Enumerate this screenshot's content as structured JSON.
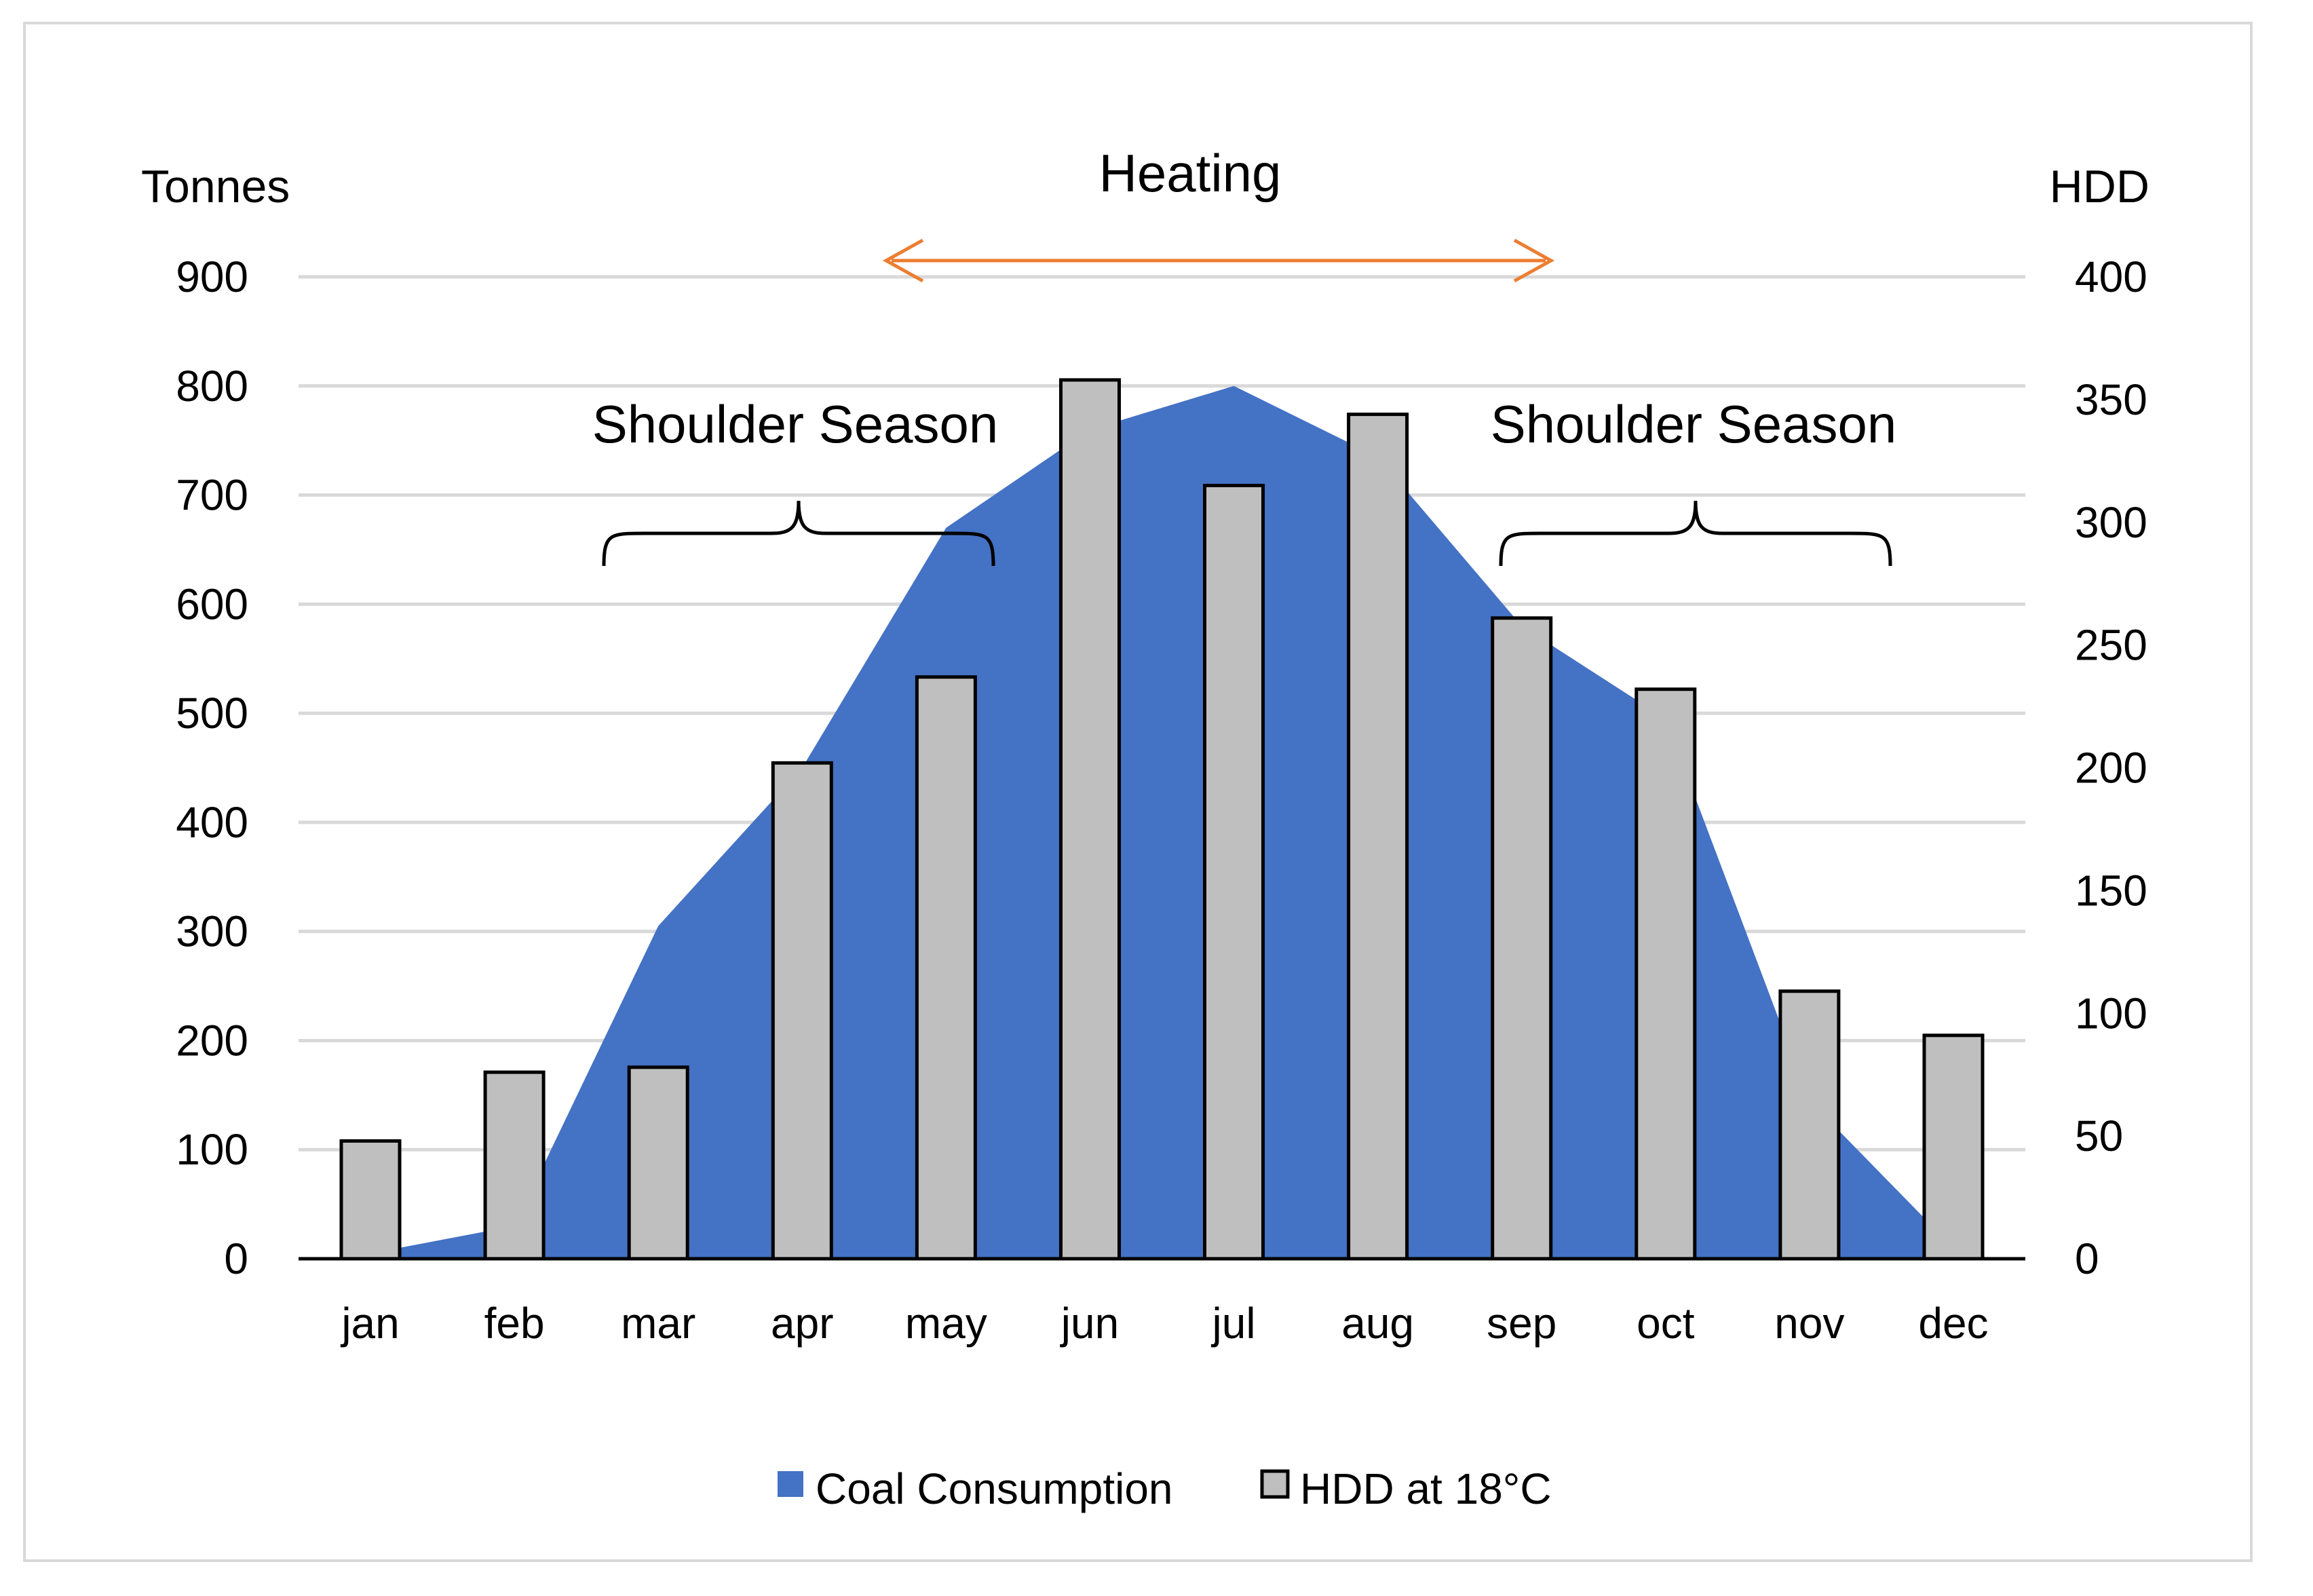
{
  "chart_data": {
    "type": "bar",
    "categories": [
      "jan",
      "feb",
      "mar",
      "apr",
      "may",
      "jun",
      "jul",
      "aug",
      "sep",
      "oct",
      "nov",
      "dec"
    ],
    "series": [
      {
        "name": "Coal Consumption",
        "type": "area",
        "axis": "left",
        "color": "#4472c4",
        "values": [
          5,
          30,
          305,
          450,
          670,
          760,
          800,
          735,
          580,
          495,
          145,
          10
        ]
      },
      {
        "name": "HDD at 18°C",
        "type": "bar",
        "axis": "right",
        "color": "#bfbfbf",
        "values": [
          48,
          76,
          78,
          202,
          237,
          358,
          315,
          344,
          261,
          232,
          109,
          91
        ]
      }
    ],
    "ylabel_left": "Tonnes",
    "ylabel_right": "HDD",
    "ylim_left": [
      0,
      900
    ],
    "ylim_right": [
      0,
      400
    ],
    "yticks_left": [
      "0",
      "100",
      "200",
      "300",
      "400",
      "500",
      "600",
      "700",
      "800",
      "900"
    ],
    "yticks_right": [
      "0",
      "50",
      "100",
      "150",
      "200",
      "250",
      "300",
      "350",
      "400"
    ],
    "grid": true,
    "legend_placement": "bottom",
    "annotations": {
      "heating": "Heating",
      "shoulder_left": "Shoulder Season",
      "shoulder_right": "Shoulder Season"
    },
    "colors": {
      "area": "#4472c4",
      "bar_fill": "#bfbfbf",
      "bar_stroke": "#000000",
      "arrow": "#ed7d31",
      "grid": "#d9d9d9"
    }
  }
}
